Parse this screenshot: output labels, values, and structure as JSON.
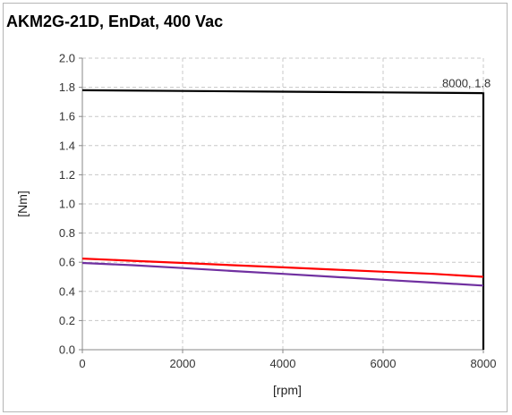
{
  "chart_data": {
    "type": "line",
    "title": "AKM2G-21D, EnDat, 400 Vac",
    "xlabel": "[rpm]",
    "ylabel": "[Nm]",
    "xlim": [
      0,
      8000
    ],
    "ylim": [
      0,
      2.0
    ],
    "x_ticks": [
      "0",
      "2000",
      "4000",
      "6000",
      "8000"
    ],
    "y_ticks": [
      "0.0",
      "0.2",
      "0.4",
      "0.6",
      "0.8",
      "1.0",
      "1.2",
      "1.4",
      "1.6",
      "1.8",
      "2.0"
    ],
    "grid": true,
    "legend": "none",
    "series": [
      {
        "color": "#000000",
        "x": [
          0,
          2000,
          4000,
          6000,
          8000,
          8000
        ],
        "y": [
          1.78,
          1.775,
          1.77,
          1.765,
          1.76,
          0.0
        ]
      },
      {
        "color": "#ff0000",
        "x": [
          0,
          1000,
          2000,
          3000,
          4000,
          5000,
          6000,
          7000,
          8000
        ],
        "y": [
          0.625,
          0.61,
          0.595,
          0.58,
          0.565,
          0.55,
          0.535,
          0.52,
          0.5
        ]
      },
      {
        "color": "#7030a0",
        "x": [
          0,
          1000,
          2000,
          3000,
          4000,
          5000,
          6000,
          7000,
          8000
        ],
        "y": [
          0.595,
          0.58,
          0.56,
          0.54,
          0.52,
          0.5,
          0.48,
          0.46,
          0.44
        ]
      }
    ],
    "annotations": [
      {
        "text": "8000, 1.8",
        "x": 8000,
        "y": 1.8
      }
    ]
  }
}
